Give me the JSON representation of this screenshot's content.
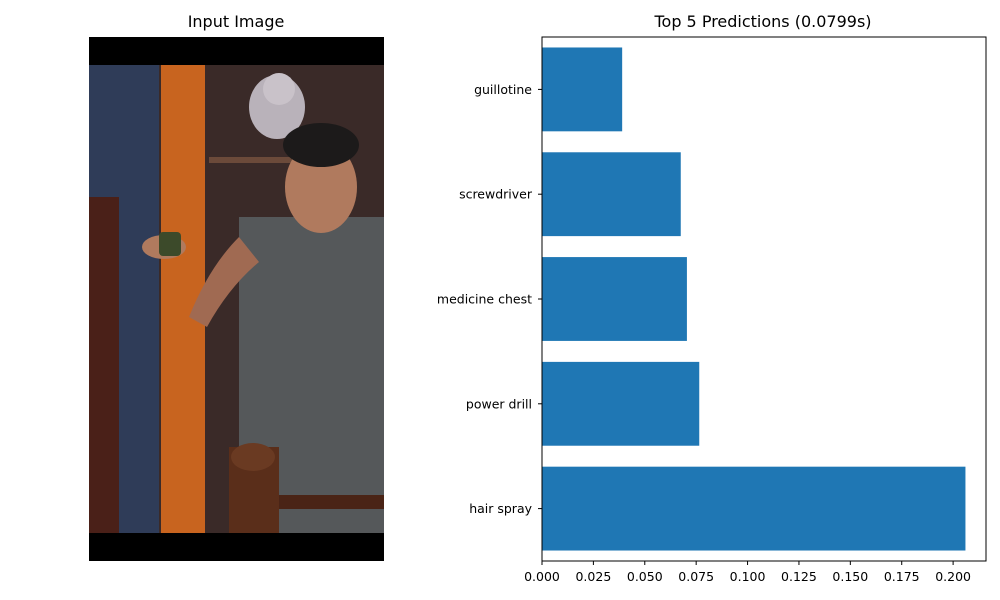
{
  "left_panel": {
    "title": "Input Image"
  },
  "right_panel": {
    "title": "Top 5 Predictions (0.0799s)"
  },
  "colors": {
    "bar": "#1f77b4",
    "axis": "#000000",
    "letterbox": "#000000"
  },
  "chart_data": {
    "type": "bar",
    "orientation": "horizontal",
    "title": "Top 5 Predictions (0.0799s)",
    "xlabel": "",
    "ylabel": "",
    "categories": [
      "hair spray",
      "power drill",
      "medicine chest",
      "screwdriver",
      "guillotine"
    ],
    "values": [
      0.206,
      0.0765,
      0.0705,
      0.0675,
      0.039
    ],
    "xlim": [
      0,
      0.216
    ],
    "xticks": [
      "0.000",
      "0.025",
      "0.050",
      "0.075",
      "0.100",
      "0.125",
      "0.150",
      "0.175",
      "0.200"
    ],
    "grid": false
  }
}
